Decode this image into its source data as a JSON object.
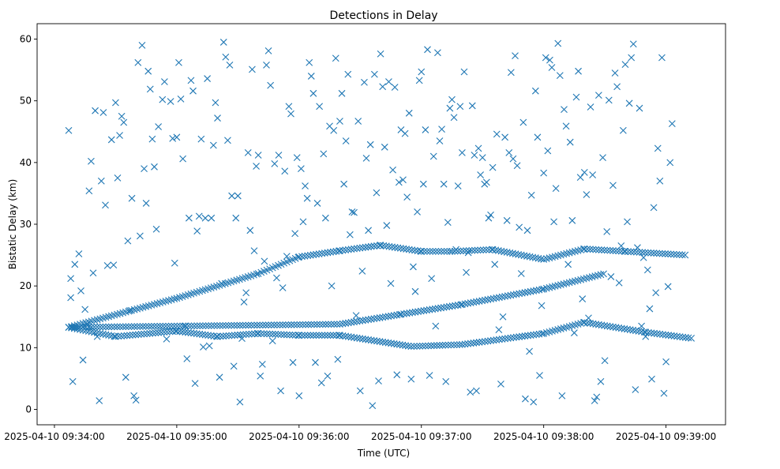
{
  "chart_data": {
    "type": "scatter",
    "title": "Detections in Delay",
    "xlabel": "Time (UTC)",
    "ylabel": "Bistatic Delay (km)",
    "marker": "x",
    "marker_color": "#1f77b4",
    "grid": false,
    "xlim_seconds": [
      -8.5,
      329.2
    ],
    "x_origin": "2025-04-10 09:34:00",
    "ylim": [
      -2.5,
      62.5
    ],
    "x_ticks": [
      {
        "seconds": 0,
        "label": "2025-04-10 09:34:00"
      },
      {
        "seconds": 60,
        "label": "2025-04-10 09:35:00"
      },
      {
        "seconds": 120,
        "label": "2025-04-10 09:36:00"
      },
      {
        "seconds": 180,
        "label": "2025-04-10 09:37:00"
      },
      {
        "seconds": 240,
        "label": "2025-04-10 09:38:00"
      },
      {
        "seconds": 300,
        "label": "2025-04-10 09:39:00"
      }
    ],
    "y_ticks": [
      0,
      10,
      20,
      30,
      40,
      50,
      60
    ],
    "x_data_range_seconds": [
      7,
      313
    ],
    "tracks": [
      {
        "name": "rising track",
        "points": [
          [
            7,
            13.3
          ],
          [
            60,
            18.0
          ],
          [
            100,
            22.0
          ],
          [
            120,
            24.7
          ],
          [
            140,
            25.7
          ],
          [
            160,
            26.6
          ],
          [
            180,
            25.6
          ],
          [
            195,
            25.6
          ],
          [
            215,
            25.9
          ],
          [
            240,
            24.3
          ],
          [
            260,
            26.0
          ],
          [
            280,
            25.6
          ],
          [
            310,
            25.0
          ]
        ]
      },
      {
        "name": "rising track lower",
        "points": [
          [
            7,
            13.3
          ],
          [
            140,
            13.8
          ],
          [
            170,
            15.4
          ],
          [
            200,
            17.0
          ],
          [
            240,
            19.5
          ],
          [
            270,
            22.0
          ]
        ]
      },
      {
        "name": "falling track",
        "points": [
          [
            7,
            13.3
          ],
          [
            30,
            11.8
          ],
          [
            60,
            12.7
          ],
          [
            80,
            11.8
          ],
          [
            100,
            12.3
          ],
          [
            120,
            12.0
          ],
          [
            140,
            12.0
          ],
          [
            175,
            10.2
          ],
          [
            200,
            10.5
          ],
          [
            240,
            12.3
          ],
          [
            260,
            14.1
          ],
          [
            290,
            12.5
          ],
          [
            313,
            11.5
          ]
        ]
      }
    ],
    "scattered_points": [
      [
        7,
        45.2
      ],
      [
        8,
        21.2
      ],
      [
        8,
        18.1
      ],
      [
        9,
        4.5
      ],
      [
        10,
        23.5
      ],
      [
        12,
        25.2
      ],
      [
        13,
        19.2
      ],
      [
        14,
        8.0
      ],
      [
        15,
        16.2
      ],
      [
        16,
        13.8
      ],
      [
        17,
        35.4
      ],
      [
        18,
        40.2
      ],
      [
        19,
        22.1
      ],
      [
        20,
        48.4
      ],
      [
        21,
        11.8
      ],
      [
        22,
        1.4
      ],
      [
        23,
        37.0
      ],
      [
        24,
        48.1
      ],
      [
        25,
        33.1
      ],
      [
        26,
        23.3
      ],
      [
        28,
        43.7
      ],
      [
        29,
        23.4
      ],
      [
        30,
        49.7
      ],
      [
        31,
        37.5
      ],
      [
        32,
        44.4
      ],
      [
        33,
        47.5
      ],
      [
        34,
        46.5
      ],
      [
        35,
        5.2
      ],
      [
        36,
        27.3
      ],
      [
        37,
        16.0
      ],
      [
        38,
        34.2
      ],
      [
        39,
        2.2
      ],
      [
        40,
        1.5
      ],
      [
        41,
        56.2
      ],
      [
        42,
        28.1
      ],
      [
        43,
        59.0
      ],
      [
        44,
        39.0
      ],
      [
        45,
        33.4
      ],
      [
        46,
        54.8
      ],
      [
        47,
        51.9
      ],
      [
        48,
        43.8
      ],
      [
        49,
        39.3
      ],
      [
        50,
        29.2
      ],
      [
        51,
        45.8
      ],
      [
        53,
        50.2
      ],
      [
        54,
        53.1
      ],
      [
        55,
        11.4
      ],
      [
        57,
        49.9
      ],
      [
        58,
        43.9
      ],
      [
        59,
        23.7
      ],
      [
        60,
        44.1
      ],
      [
        61,
        56.2
      ],
      [
        62,
        50.3
      ],
      [
        63,
        40.6
      ],
      [
        64,
        13.5
      ],
      [
        65,
        8.2
      ],
      [
        66,
        31.0
      ],
      [
        67,
        53.3
      ],
      [
        68,
        51.6
      ],
      [
        69,
        4.2
      ],
      [
        70,
        28.9
      ],
      [
        71,
        31.3
      ],
      [
        72,
        43.8
      ],
      [
        73,
        10.1
      ],
      [
        74,
        31.0
      ],
      [
        75,
        53.6
      ],
      [
        76,
        10.3
      ],
      [
        77,
        31.0
      ],
      [
        78,
        42.8
      ],
      [
        79,
        49.7
      ],
      [
        80,
        47.2
      ],
      [
        81,
        5.2
      ],
      [
        82,
        20.4
      ],
      [
        83,
        59.5
      ],
      [
        84,
        57.1
      ],
      [
        85,
        43.6
      ],
      [
        86,
        55.8
      ],
      [
        87,
        34.6
      ],
      [
        88,
        7.0
      ],
      [
        89,
        31.0
      ],
      [
        90,
        34.6
      ],
      [
        91,
        1.2
      ],
      [
        92,
        11.5
      ],
      [
        93,
        17.4
      ],
      [
        94,
        18.9
      ],
      [
        95,
        41.6
      ],
      [
        96,
        29.0
      ],
      [
        97,
        55.1
      ],
      [
        98,
        25.7
      ],
      [
        99,
        39.4
      ],
      [
        100,
        41.2
      ],
      [
        101,
        5.4
      ],
      [
        102,
        7.3
      ],
      [
        103,
        24.0
      ],
      [
        104,
        55.8
      ],
      [
        105,
        58.1
      ],
      [
        106,
        52.5
      ],
      [
        107,
        11.1
      ],
      [
        108,
        39.8
      ],
      [
        109,
        21.3
      ],
      [
        110,
        41.2
      ],
      [
        111,
        3.0
      ],
      [
        112,
        19.7
      ],
      [
        113,
        38.6
      ],
      [
        114,
        24.8
      ],
      [
        115,
        49.1
      ],
      [
        116,
        47.9
      ],
      [
        117,
        7.6
      ],
      [
        118,
        28.5
      ],
      [
        119,
        40.8
      ],
      [
        120,
        2.2
      ],
      [
        121,
        39.0
      ],
      [
        122,
        30.4
      ],
      [
        123,
        36.2
      ],
      [
        124,
        34.2
      ],
      [
        125,
        56.2
      ],
      [
        126,
        54.0
      ],
      [
        127,
        51.2
      ],
      [
        128,
        7.6
      ],
      [
        129,
        33.4
      ],
      [
        130,
        49.1
      ],
      [
        131,
        4.3
      ],
      [
        132,
        41.4
      ],
      [
        133,
        31.0
      ],
      [
        134,
        5.4
      ],
      [
        135,
        45.9
      ],
      [
        136,
        20.0
      ],
      [
        137,
        45.2
      ],
      [
        138,
        56.9
      ],
      [
        139,
        8.1
      ],
      [
        140,
        46.7
      ],
      [
        141,
        51.2
      ],
      [
        142,
        36.5
      ],
      [
        143,
        43.5
      ],
      [
        144,
        54.3
      ],
      [
        145,
        28.3
      ],
      [
        146,
        32.0
      ],
      [
        147,
        31.9
      ],
      [
        148,
        15.2
      ],
      [
        149,
        46.7
      ],
      [
        150,
        3.0
      ],
      [
        151,
        22.4
      ],
      [
        152,
        53.0
      ],
      [
        153,
        40.7
      ],
      [
        154,
        29.0
      ],
      [
        155,
        42.9
      ],
      [
        156,
        0.6
      ],
      [
        157,
        54.3
      ],
      [
        158,
        35.1
      ],
      [
        159,
        4.6
      ],
      [
        160,
        57.6
      ],
      [
        161,
        52.3
      ],
      [
        162,
        42.5
      ],
      [
        163,
        29.8
      ],
      [
        164,
        53.1
      ],
      [
        165,
        20.4
      ],
      [
        166,
        38.8
      ],
      [
        167,
        52.2
      ],
      [
        168,
        5.6
      ],
      [
        169,
        36.8
      ],
      [
        170,
        45.3
      ],
      [
        171,
        37.2
      ],
      [
        172,
        44.7
      ],
      [
        173,
        34.4
      ],
      [
        174,
        48.0
      ],
      [
        175,
        4.9
      ],
      [
        176,
        23.1
      ],
      [
        177,
        19.1
      ],
      [
        178,
        32.0
      ],
      [
        179,
        53.3
      ],
      [
        180,
        54.7
      ],
      [
        181,
        36.5
      ],
      [
        182,
        45.3
      ],
      [
        183,
        58.3
      ],
      [
        184,
        5.5
      ],
      [
        185,
        21.2
      ],
      [
        186,
        41.0
      ],
      [
        187,
        13.5
      ],
      [
        188,
        57.8
      ],
      [
        189,
        43.5
      ],
      [
        190,
        45.4
      ],
      [
        191,
        36.5
      ],
      [
        192,
        4.5
      ],
      [
        193,
        30.3
      ],
      [
        194,
        48.8
      ],
      [
        195,
        50.2
      ],
      [
        196,
        47.3
      ],
      [
        197,
        25.9
      ],
      [
        198,
        36.2
      ],
      [
        199,
        49.1
      ],
      [
        200,
        41.6
      ],
      [
        201,
        54.7
      ],
      [
        202,
        22.2
      ],
      [
        203,
        25.4
      ],
      [
        204,
        2.8
      ],
      [
        205,
        49.2
      ],
      [
        206,
        41.2
      ],
      [
        207,
        3.0
      ],
      [
        208,
        42.3
      ],
      [
        209,
        38.0
      ],
      [
        210,
        40.8
      ],
      [
        211,
        36.5
      ],
      [
        212,
        36.8
      ],
      [
        213,
        31.0
      ],
      [
        214,
        31.5
      ],
      [
        215,
        39.2
      ],
      [
        216,
        23.5
      ],
      [
        217,
        44.6
      ],
      [
        218,
        12.9
      ],
      [
        219,
        4.1
      ],
      [
        220,
        15.0
      ],
      [
        221,
        44.1
      ],
      [
        222,
        30.6
      ],
      [
        223,
        41.6
      ],
      [
        224,
        54.6
      ],
      [
        225,
        40.6
      ],
      [
        226,
        57.3
      ],
      [
        227,
        39.5
      ],
      [
        228,
        29.5
      ],
      [
        229,
        22.0
      ],
      [
        230,
        46.5
      ],
      [
        231,
        1.7
      ],
      [
        232,
        29.0
      ],
      [
        233,
        9.4
      ],
      [
        234,
        34.7
      ],
      [
        235,
        1.2
      ],
      [
        236,
        51.6
      ],
      [
        237,
        44.1
      ],
      [
        238,
        5.5
      ],
      [
        239,
        16.8
      ],
      [
        240,
        38.3
      ],
      [
        241,
        57.0
      ],
      [
        242,
        41.9
      ],
      [
        243,
        56.6
      ],
      [
        244,
        55.4
      ],
      [
        245,
        30.4
      ],
      [
        246,
        35.8
      ],
      [
        247,
        59.3
      ],
      [
        248,
        54.1
      ],
      [
        249,
        2.2
      ],
      [
        250,
        48.6
      ],
      [
        251,
        45.9
      ],
      [
        252,
        23.5
      ],
      [
        253,
        43.3
      ],
      [
        254,
        30.6
      ],
      [
        255,
        12.4
      ],
      [
        256,
        50.6
      ],
      [
        257,
        54.8
      ],
      [
        258,
        37.6
      ],
      [
        259,
        17.9
      ],
      [
        260,
        38.4
      ],
      [
        261,
        34.8
      ],
      [
        262,
        14.8
      ],
      [
        263,
        49.0
      ],
      [
        264,
        38.0
      ],
      [
        265,
        1.4
      ],
      [
        266,
        2.0
      ],
      [
        267,
        50.9
      ],
      [
        268,
        4.5
      ],
      [
        269,
        40.8
      ],
      [
        270,
        7.9
      ],
      [
        271,
        28.8
      ],
      [
        272,
        50.1
      ],
      [
        273,
        21.5
      ],
      [
        274,
        36.3
      ],
      [
        275,
        54.5
      ],
      [
        276,
        52.3
      ],
      [
        277,
        20.5
      ],
      [
        278,
        26.5
      ],
      [
        279,
        45.2
      ],
      [
        280,
        55.9
      ],
      [
        281,
        30.4
      ],
      [
        282,
        49.6
      ],
      [
        283,
        57.0
      ],
      [
        284,
        59.2
      ],
      [
        285,
        3.2
      ],
      [
        286,
        26.2
      ],
      [
        287,
        48.8
      ],
      [
        288,
        13.5
      ],
      [
        289,
        24.6
      ],
      [
        290,
        11.8
      ],
      [
        291,
        22.6
      ],
      [
        292,
        16.3
      ],
      [
        293,
        4.9
      ],
      [
        294,
        32.7
      ],
      [
        295,
        18.9
      ],
      [
        296,
        42.3
      ],
      [
        297,
        37.0
      ],
      [
        298,
        57.0
      ],
      [
        299,
        2.6
      ],
      [
        300,
        7.7
      ],
      [
        301,
        19.9
      ],
      [
        302,
        40.0
      ],
      [
        303,
        46.3
      ]
    ]
  }
}
